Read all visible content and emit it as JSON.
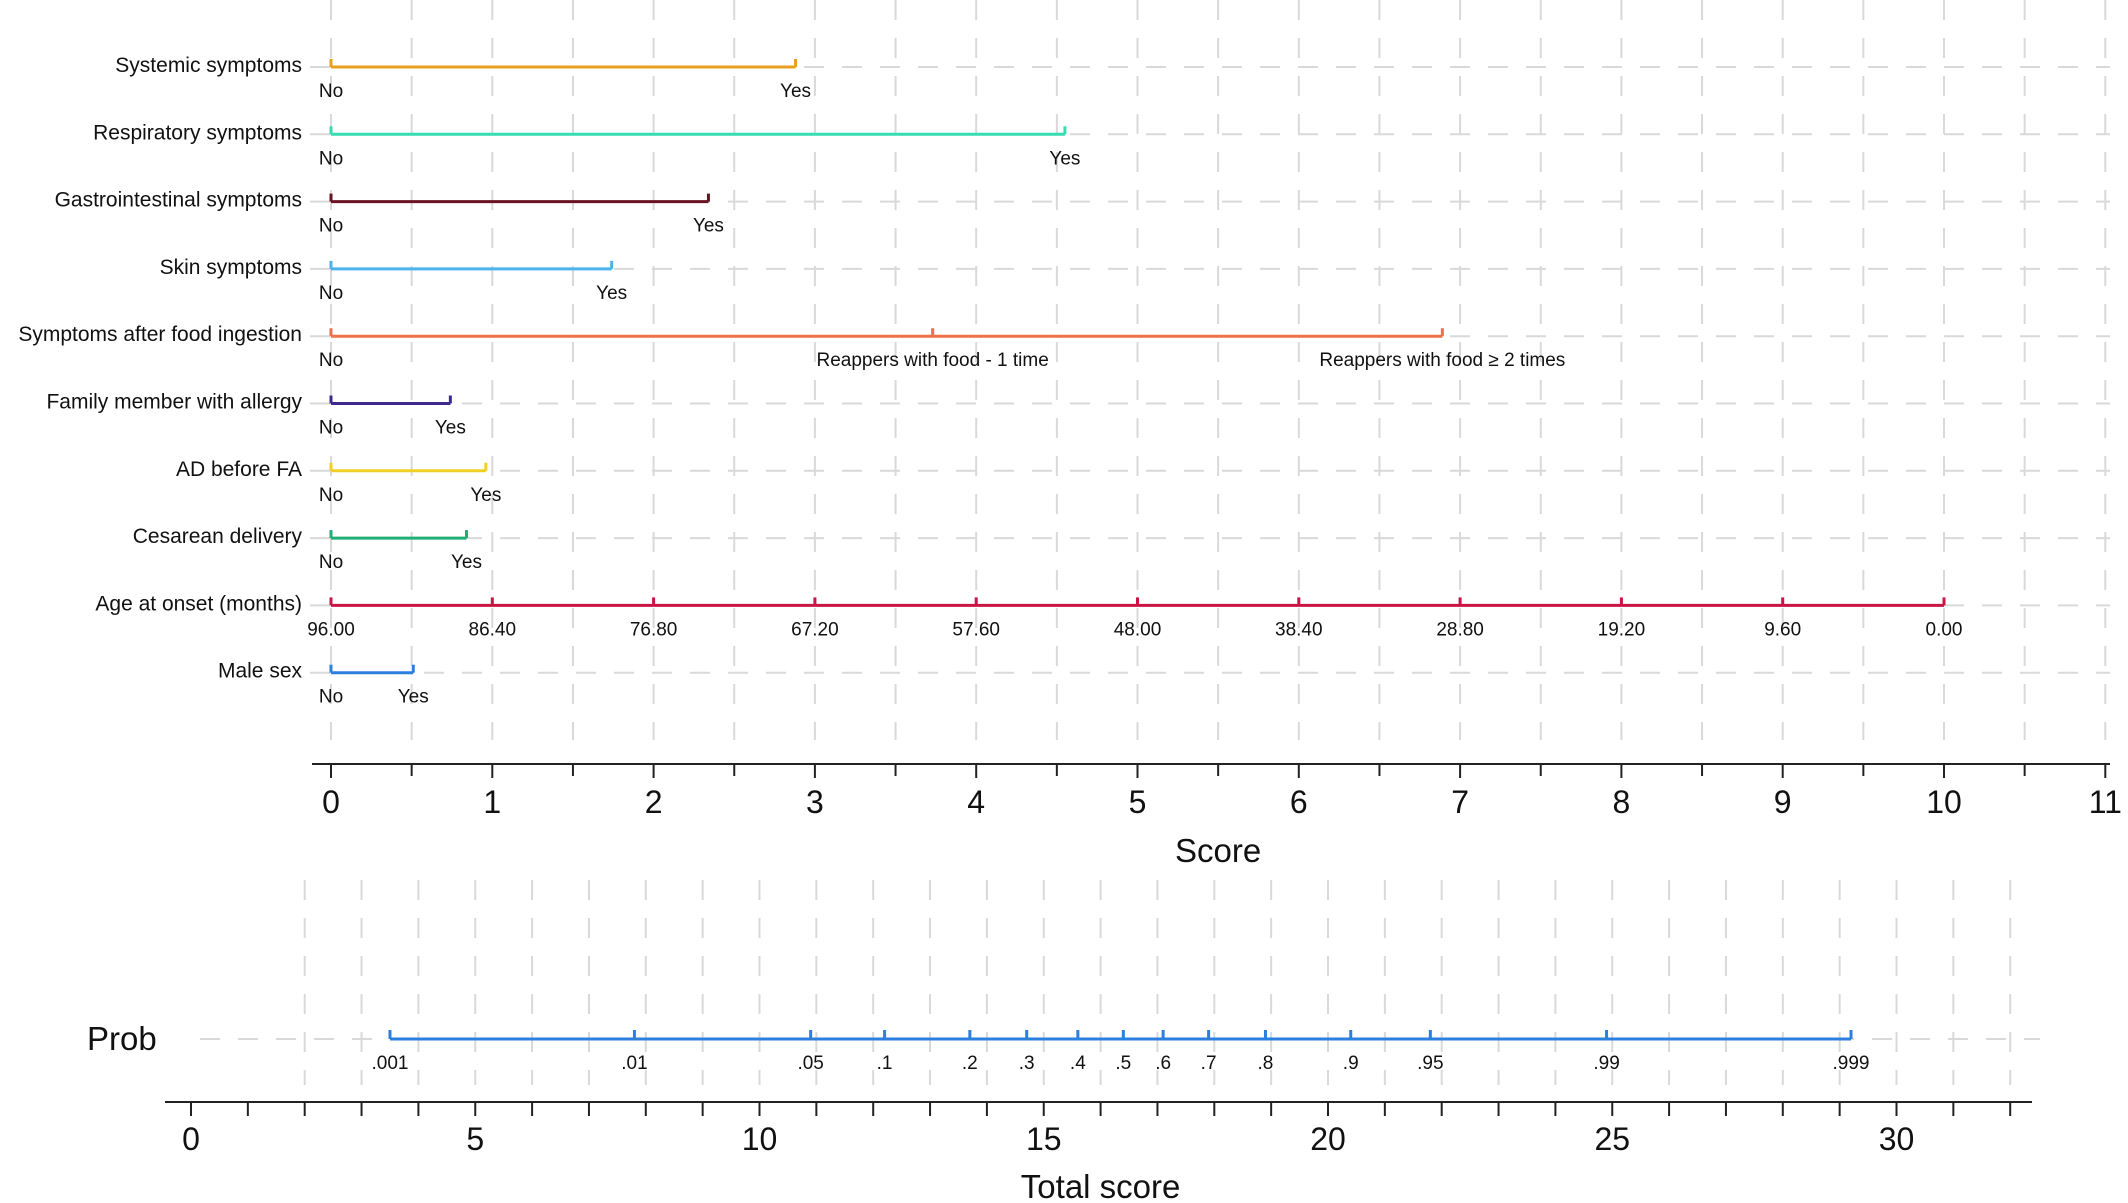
{
  "chart_data": {
    "type": "nomogram",
    "variables": [
      {
        "name": "Systemic symptoms",
        "color": "#e8a01c",
        "points": [
          {
            "label": "No",
            "score": 0
          },
          {
            "label": "Yes",
            "score": 2.88
          }
        ]
      },
      {
        "name": "Respiratory symptoms",
        "color": "#36dcb2",
        "points": [
          {
            "label": "No",
            "score": 0
          },
          {
            "label": "Yes",
            "score": 4.55
          }
        ]
      },
      {
        "name": "Gastrointestinal symptoms",
        "color": "#6b1222",
        "points": [
          {
            "label": "No",
            "score": 0
          },
          {
            "label": "Yes",
            "score": 2.34
          }
        ]
      },
      {
        "name": "Skin symptoms",
        "color": "#4cb2ec",
        "points": [
          {
            "label": "No",
            "score": 0
          },
          {
            "label": "Yes",
            "score": 1.74
          }
        ]
      },
      {
        "name": "Symptoms after food ingestion",
        "color": "#f0704a",
        "points": [
          {
            "label": "No",
            "score": 0
          },
          {
            "label": "Reappers with food - 1 time",
            "score": 3.73
          },
          {
            "label": "Reappers with food ≥ 2 times",
            "score": 6.89
          }
        ]
      },
      {
        "name": "Family member with allergy",
        "color": "#3d2a8c",
        "points": [
          {
            "label": "No",
            "score": 0
          },
          {
            "label": "Yes",
            "score": 0.74
          }
        ]
      },
      {
        "name": "AD before FA",
        "color": "#f2cf26",
        "points": [
          {
            "label": "No",
            "score": 0
          },
          {
            "label": "Yes",
            "score": 0.96
          }
        ]
      },
      {
        "name": "Cesarean delivery",
        "color": "#1fae74",
        "points": [
          {
            "label": "No",
            "score": 0
          },
          {
            "label": "Yes",
            "score": 0.84
          }
        ]
      },
      {
        "name": "Age at onset (months)",
        "color": "#c91446",
        "points": [
          {
            "label": "96.00",
            "score": 0
          },
          {
            "label": "86.40",
            "score": 1
          },
          {
            "label": "76.80",
            "score": 2
          },
          {
            "label": "67.20",
            "score": 3
          },
          {
            "label": "57.60",
            "score": 4
          },
          {
            "label": "48.00",
            "score": 5
          },
          {
            "label": "38.40",
            "score": 6
          },
          {
            "label": "28.80",
            "score": 7
          },
          {
            "label": "19.20",
            "score": 8
          },
          {
            "label": "9.60",
            "score": 9
          },
          {
            "label": "0.00",
            "score": 10
          }
        ]
      },
      {
        "name": "Male sex",
        "color": "#2b7fde",
        "points": [
          {
            "label": "No",
            "score": 0
          },
          {
            "label": "Yes",
            "score": 0.51
          }
        ]
      }
    ],
    "score_axis": {
      "title": "Score",
      "range": [
        0,
        11
      ],
      "tick_labels": [
        "0",
        "1",
        "2",
        "3",
        "4",
        "5",
        "6",
        "7",
        "8",
        "9",
        "10",
        "11"
      ]
    },
    "prob": {
      "title": "Prob",
      "color": "#2b7fde",
      "points": [
        {
          "label": ".001",
          "total": 3.5
        },
        {
          "label": ".01",
          "total": 7.8
        },
        {
          "label": ".05",
          "total": 10.9
        },
        {
          "label": ".1",
          "total": 12.2
        },
        {
          "label": ".2",
          "total": 13.7
        },
        {
          "label": ".3",
          "total": 14.7
        },
        {
          "label": ".4",
          "total": 15.6
        },
        {
          "label": ".5",
          "total": 16.4
        },
        {
          "label": ".6",
          "total": 17.1
        },
        {
          "label": ".7",
          "total": 17.9
        },
        {
          "label": ".8",
          "total": 18.9
        },
        {
          "label": ".9",
          "total": 20.4
        },
        {
          "label": ".95",
          "total": 21.8
        },
        {
          "label": ".99",
          "total": 24.9
        },
        {
          "label": ".999",
          "total": 29.2
        }
      ]
    },
    "total_axis": {
      "title": "Total score",
      "range": [
        0,
        32
      ],
      "tick_labels": [
        "0",
        "5",
        "10",
        "15",
        "20",
        "25",
        "30"
      ],
      "major_step": 5
    },
    "grid": true
  }
}
